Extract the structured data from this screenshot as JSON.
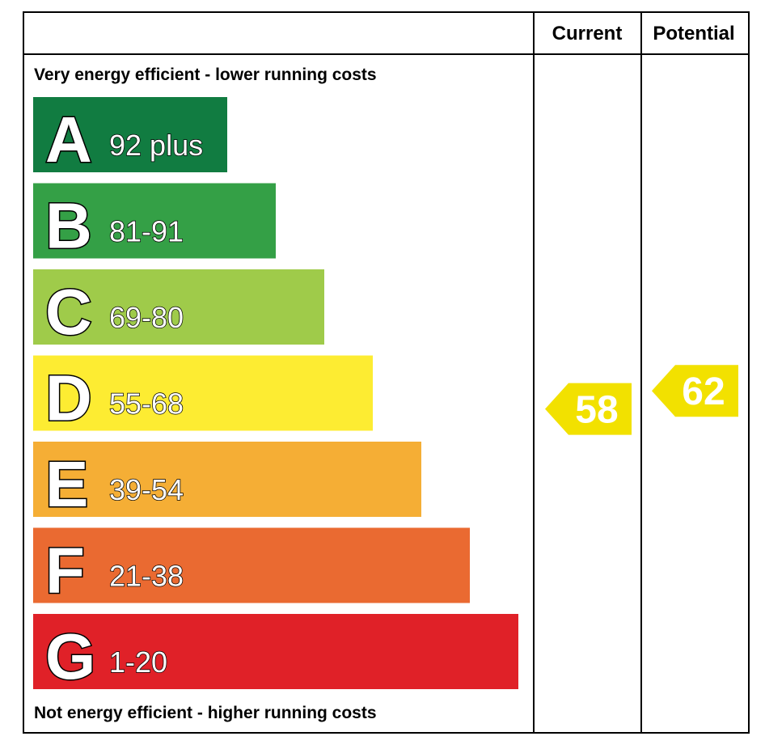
{
  "chart_data": {
    "type": "bar",
    "header": {
      "current": "Current",
      "potential": "Potential"
    },
    "top_label": "Very energy efficient - lower running costs",
    "bottom_label": "Not energy efficient - higher running costs",
    "bands": [
      {
        "letter": "A",
        "range": "92 plus",
        "min": 92,
        "max": 100,
        "color": "#117c41"
      },
      {
        "letter": "B",
        "range": "81-91",
        "min": 81,
        "max": 91,
        "color": "#34a046"
      },
      {
        "letter": "C",
        "range": "69-80",
        "min": 69,
        "max": 80,
        "color": "#9fcb4a"
      },
      {
        "letter": "D",
        "range": "55-68",
        "min": 55,
        "max": 68,
        "color": "#fdec32"
      },
      {
        "letter": "E",
        "range": "39-54",
        "min": 39,
        "max": 54,
        "color": "#f5ae35"
      },
      {
        "letter": "F",
        "range": "21-38",
        "min": 21,
        "max": 38,
        "color": "#ea6a31"
      },
      {
        "letter": "G",
        "range": "1-20",
        "min": 1,
        "max": 20,
        "color": "#e02128"
      }
    ],
    "current": {
      "value": 58,
      "label": "58",
      "band": "D",
      "color": "#f2e100"
    },
    "potential": {
      "value": 62,
      "label": "62",
      "band": "D",
      "color": "#f2e100"
    }
  }
}
